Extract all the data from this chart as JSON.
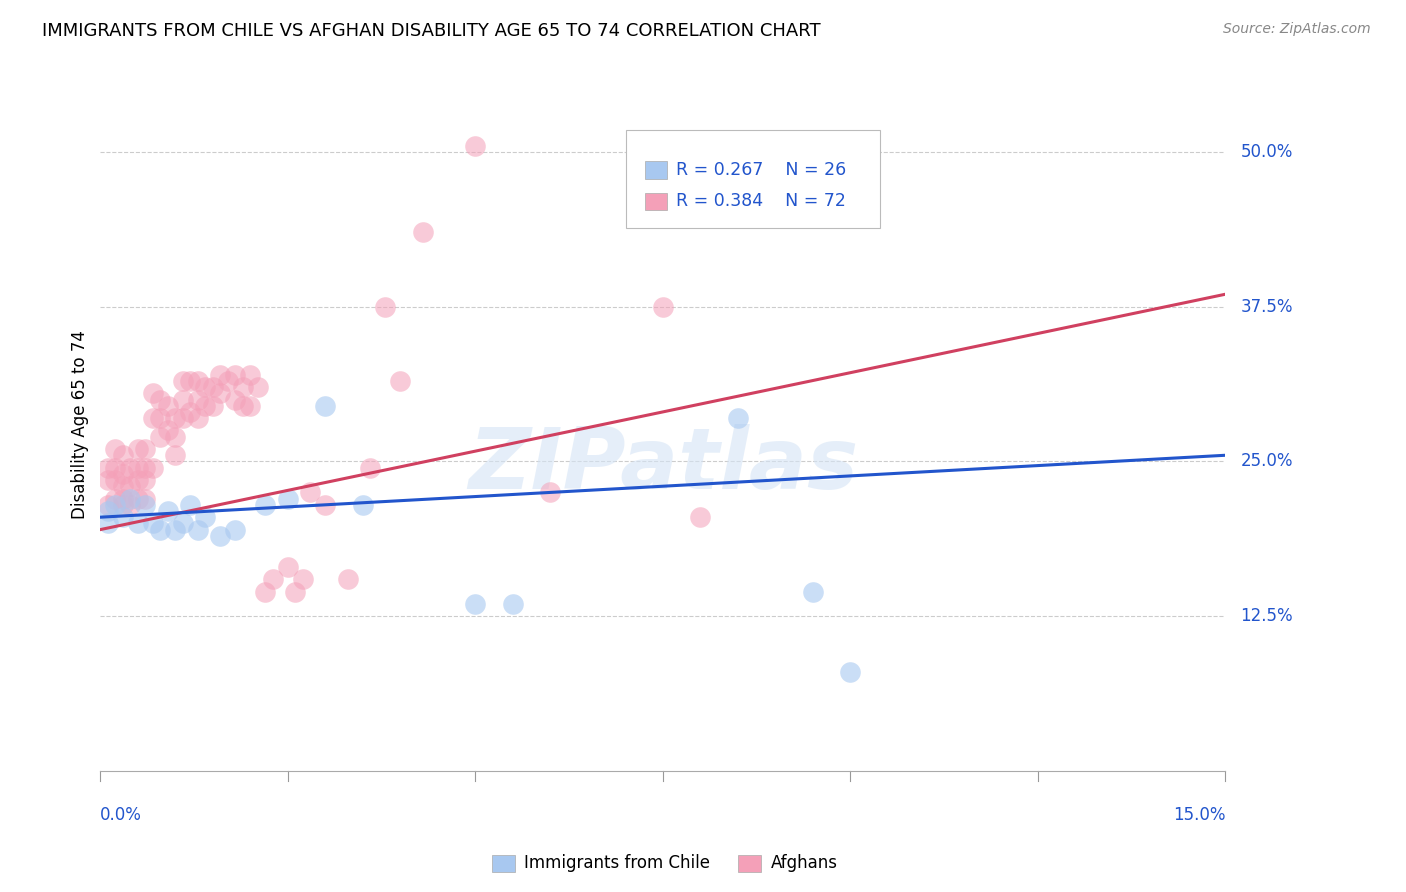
{
  "title": "IMMIGRANTS FROM CHILE VS AFGHAN DISABILITY AGE 65 TO 74 CORRELATION CHART",
  "source": "Source: ZipAtlas.com",
  "ylabel": "Disability Age 65 to 74",
  "ytick_labels": [
    "12.5%",
    "25.0%",
    "37.5%",
    "50.0%"
  ],
  "ytick_values": [
    0.125,
    0.25,
    0.375,
    0.5
  ],
  "xmin": 0.0,
  "xmax": 0.15,
  "ymin": 0.0,
  "ymax": 0.56,
  "R_chile": 0.267,
  "N_chile": 26,
  "R_afghan": 0.384,
  "N_afghan": 72,
  "color_chile": "#A8C8F0",
  "color_afghan": "#F4A0B8",
  "line_color_chile": "#2255CC",
  "line_color_afghan": "#D04060",
  "text_color": "#2255CC",
  "legend_label_chile": "Immigrants from Chile",
  "legend_label_afghan": "Afghans",
  "chile_x": [
    0.001,
    0.001,
    0.002,
    0.003,
    0.004,
    0.005,
    0.006,
    0.007,
    0.008,
    0.009,
    0.01,
    0.011,
    0.012,
    0.013,
    0.014,
    0.016,
    0.018,
    0.022,
    0.025,
    0.03,
    0.035,
    0.05,
    0.055,
    0.085,
    0.095,
    0.1
  ],
  "chile_y": [
    0.21,
    0.2,
    0.215,
    0.205,
    0.22,
    0.2,
    0.215,
    0.2,
    0.195,
    0.21,
    0.195,
    0.2,
    0.215,
    0.195,
    0.205,
    0.19,
    0.195,
    0.215,
    0.22,
    0.295,
    0.215,
    0.135,
    0.135,
    0.285,
    0.145,
    0.08
  ],
  "afghan_x": [
    0.001,
    0.001,
    0.001,
    0.002,
    0.002,
    0.002,
    0.002,
    0.003,
    0.003,
    0.003,
    0.003,
    0.003,
    0.004,
    0.004,
    0.004,
    0.005,
    0.005,
    0.005,
    0.005,
    0.006,
    0.006,
    0.006,
    0.006,
    0.007,
    0.007,
    0.007,
    0.008,
    0.008,
    0.008,
    0.009,
    0.009,
    0.01,
    0.01,
    0.01,
    0.011,
    0.011,
    0.011,
    0.012,
    0.012,
    0.013,
    0.013,
    0.013,
    0.014,
    0.014,
    0.015,
    0.015,
    0.016,
    0.016,
    0.017,
    0.018,
    0.018,
    0.019,
    0.019,
    0.02,
    0.02,
    0.021,
    0.022,
    0.023,
    0.025,
    0.026,
    0.027,
    0.028,
    0.03,
    0.033,
    0.036,
    0.038,
    0.04,
    0.043,
    0.05,
    0.06,
    0.075,
    0.08
  ],
  "afghan_y": [
    0.235,
    0.245,
    0.215,
    0.22,
    0.235,
    0.245,
    0.26,
    0.215,
    0.22,
    0.23,
    0.24,
    0.255,
    0.215,
    0.23,
    0.245,
    0.22,
    0.235,
    0.245,
    0.26,
    0.22,
    0.235,
    0.245,
    0.26,
    0.245,
    0.285,
    0.305,
    0.27,
    0.285,
    0.3,
    0.275,
    0.295,
    0.255,
    0.27,
    0.285,
    0.3,
    0.315,
    0.285,
    0.315,
    0.29,
    0.3,
    0.315,
    0.285,
    0.295,
    0.31,
    0.295,
    0.31,
    0.32,
    0.305,
    0.315,
    0.3,
    0.32,
    0.295,
    0.31,
    0.32,
    0.295,
    0.31,
    0.145,
    0.155,
    0.165,
    0.145,
    0.155,
    0.225,
    0.215,
    0.155,
    0.245,
    0.375,
    0.315,
    0.435,
    0.505,
    0.225,
    0.375,
    0.205
  ],
  "blue_line_y0": 0.205,
  "blue_line_y1": 0.255,
  "pink_line_y0": 0.195,
  "pink_line_y1": 0.385
}
